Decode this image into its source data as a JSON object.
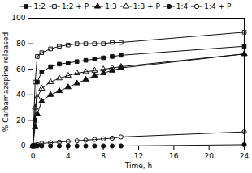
{
  "chart_data": {
    "type": "line",
    "xlabel": "Time, h",
    "ylabel": "% Carbamazepine released",
    "x": [
      0,
      0.25,
      0.5,
      1,
      2,
      3,
      4,
      5,
      6,
      7,
      8,
      9,
      10,
      24
    ],
    "xlim": [
      0,
      24
    ],
    "ylim": [
      0,
      100
    ],
    "xticks": [
      0,
      4,
      8,
      12,
      16,
      20,
      24
    ],
    "yticks": [
      0,
      20,
      40,
      60,
      80,
      100
    ],
    "legend": "top",
    "series": [
      {
        "name": "1:2",
        "color": "#111111",
        "marker": "square",
        "values": [
          0,
          20,
          50,
          58,
          62,
          64,
          65,
          66,
          67,
          68,
          69,
          70,
          71,
          78
        ]
      },
      {
        "name": "1:2 + P",
        "color": "#111111",
        "marker": "square-open",
        "values": [
          0,
          50,
          70,
          73,
          76,
          78,
          79,
          80,
          80,
          80,
          80,
          81,
          81,
          89
        ]
      },
      {
        "name": "1:3",
        "color": "#111111",
        "marker": "triangle",
        "values": [
          0,
          15,
          25,
          35,
          40,
          43,
          46,
          49,
          52,
          55,
          57,
          59,
          61,
          72
        ]
      },
      {
        "name": "1:3 + P",
        "color": "#111111",
        "marker": "triangle-open",
        "values": [
          0,
          30,
          38,
          45,
          50,
          53,
          55,
          57,
          58,
          59,
          60,
          61,
          62,
          72
        ]
      },
      {
        "name": "1:4",
        "color": "#111111",
        "marker": "circle",
        "values": [
          0,
          0,
          0,
          0,
          0,
          0,
          0,
          0,
          0,
          0,
          0,
          0,
          0,
          1
        ]
      },
      {
        "name": "1:4 + P",
        "color": "#111111",
        "marker": "circle-open",
        "values": [
          0,
          0.5,
          1,
          2,
          2.5,
          3,
          3.5,
          4,
          4.5,
          5,
          5.5,
          6,
          7,
          11
        ]
      }
    ]
  }
}
